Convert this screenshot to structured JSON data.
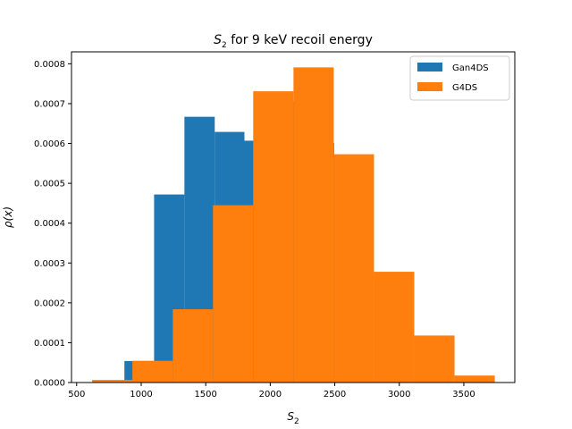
{
  "chart_data": {
    "type": "bar",
    "title": {
      "symbol": "S",
      "subscript": "2",
      "text": " for 9 keV recoil energy"
    },
    "xlabel": {
      "symbol": "S",
      "subscript": "2"
    },
    "ylabel": "ρ(x)",
    "xlim": [
      460,
      3895
    ],
    "ylim": [
      0,
      0.00083
    ],
    "xticks": [
      500,
      1000,
      1500,
      2000,
      2500,
      3000,
      3500
    ],
    "yticks": [
      0.0,
      0.0001,
      0.0002,
      0.0003,
      0.0004,
      0.0005,
      0.0006,
      0.0007,
      0.0008
    ],
    "ytick_labels": [
      "0.0000",
      "0.0001",
      "0.0002",
      "0.0003",
      "0.0004",
      "0.0005",
      "0.0006",
      "0.0007",
      "0.0008"
    ],
    "legend_position": "top-right",
    "grid": false,
    "series": [
      {
        "name": "Gan4DS",
        "color": "#1f77b4",
        "bin_edges": [
          870,
          1100,
          1335,
          1570,
          1800,
          2030,
          2262,
          2495
        ],
        "values": [
          5.4e-05,
          0.000472,
          0.000667,
          0.000629,
          0.000607,
          0.000706,
          0.000601
        ]
      },
      {
        "name": "G4DS",
        "color": "#ff7f0e",
        "bin_edges": [
          620,
          932,
          1245,
          1556,
          1868,
          2180,
          2492,
          2804,
          3116,
          3428,
          3740
        ],
        "values": [
          6.5e-06,
          5.45e-05,
          0.000184,
          0.000445,
          0.000731,
          0.000791,
          0.000573,
          0.000278,
          0.000118,
          1.75e-05
        ]
      }
    ]
  }
}
